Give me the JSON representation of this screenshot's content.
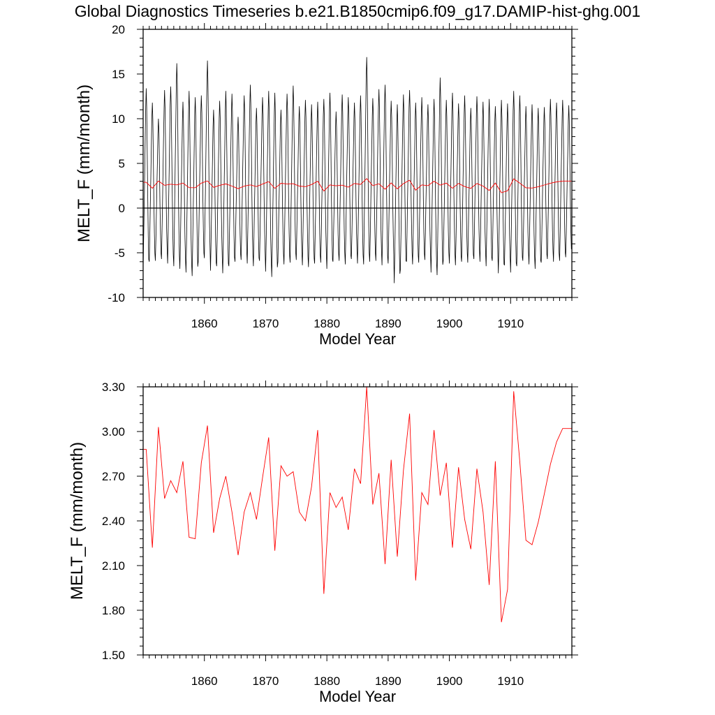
{
  "figure": {
    "title": "Global Diagnostics Timeseries b.e21.B1850cmip6.f09_g17.DAMIP-hist-ghg.001"
  },
  "chart_data": [
    {
      "type": "line",
      "panel": "top",
      "ylabel": "MELT_F (mm/month)",
      "xlabel": "Model Year",
      "xlim": [
        1850,
        1920
      ],
      "ylim": [
        -10,
        20
      ],
      "xticks": [
        1860,
        1870,
        1880,
        1890,
        1900,
        1910
      ],
      "yticks": [
        -10,
        -5,
        0,
        5,
        10,
        15,
        20
      ],
      "ytick_labels": [
        "-10",
        "-5",
        "0",
        "5",
        "10",
        "15",
        "20"
      ],
      "zero_line": true,
      "series": [
        {
          "kind": "monthly",
          "color": "#000000",
          "x_start": 1850,
          "step": 0.0833333,
          "pattern": [
            -6.5,
            -3.5,
            0.0,
            3.5,
            7.0,
            10.5,
            12.5,
            10.5,
            6.0,
            1.0,
            -3.0,
            -5.5
          ],
          "annual_peaks": [
            13.4,
            11.8,
            10.0,
            13.2,
            13.6,
            16.2,
            11.9,
            13.1,
            12.4,
            12.6,
            16.5,
            11.0,
            12.0,
            13.1,
            12.8,
            10.2,
            12.6,
            13.8,
            11.2,
            12.4,
            13.1,
            12.9,
            11.0,
            12.8,
            13.7,
            11.4,
            12.1,
            11.6,
            11.9,
            12.2,
            12.9,
            10.8,
            12.7,
            12.4,
            11.8,
            12.6,
            16.9,
            12.3,
            13.3,
            13.8,
            12.0,
            11.6,
            12.7,
            13.2,
            11.8,
            12.4,
            11.6,
            12.2,
            14.6,
            12.1,
            12.9,
            11.7,
            12.6,
            11.2,
            12.5,
            11.9,
            12.2,
            11.4,
            12.1,
            11.7,
            13.1,
            12.6,
            11.4,
            11.6,
            11.2,
            11.3,
            12.2,
            11.8,
            12.1,
            11.5
          ],
          "annual_troughs": [
            -6.8,
            -6.0,
            -5.9,
            -5.7,
            -6.2,
            -6.5,
            -6.8,
            -7.2,
            -7.6,
            -6.0,
            -5.6,
            -7.0,
            -6.5,
            -7.3,
            -6.5,
            -6.0,
            -5.8,
            -6.2,
            -6.5,
            -5.9,
            -7.1,
            -7.7,
            -6.0,
            -6.3,
            -6.1,
            -5.8,
            -6.4,
            -6.6,
            -6.2,
            -6.1,
            -6.8,
            -6.0,
            -5.9,
            -6.3,
            -5.7,
            -6.2,
            -6.3,
            -6.0,
            -5.9,
            -6.4,
            -6.2,
            -8.4,
            -6.9,
            -6.0,
            -6.3,
            -6.1,
            -5.8,
            -7.2,
            -7.5,
            -5.9,
            -6.2,
            -6.4,
            -6.0,
            -6.1,
            -5.7,
            -6.0,
            -6.5,
            -5.9,
            -7.3,
            -6.4,
            -7.2,
            -6.5,
            -5.9,
            -6.3,
            -6.8,
            -6.1,
            -5.7,
            -6.0,
            -5.9,
            -5.5
          ]
        },
        {
          "kind": "annual",
          "color": "#ff0000",
          "x": [
            1850.5,
            1851.5,
            1852.5,
            1853.5,
            1854.5,
            1855.5,
            1856.5,
            1857.5,
            1858.5,
            1859.5,
            1860.5,
            1861.5,
            1862.5,
            1863.5,
            1864.5,
            1865.5,
            1866.5,
            1867.5,
            1868.5,
            1869.5,
            1870.5,
            1871.5,
            1872.5,
            1873.5,
            1874.5,
            1875.5,
            1876.5,
            1877.5,
            1878.5,
            1879.5,
            1880.5,
            1881.5,
            1882.5,
            1883.5,
            1884.5,
            1885.5,
            1886.5,
            1887.5,
            1888.5,
            1889.5,
            1890.5,
            1891.5,
            1892.5,
            1893.5,
            1894.5,
            1895.5,
            1896.5,
            1897.5,
            1898.5,
            1899.5,
            1900.5,
            1901.5,
            1902.5,
            1903.5,
            1904.5,
            1905.5,
            1906.5,
            1907.5,
            1908.5,
            1909.5,
            1910.5,
            1911.5,
            1912.5,
            1913.5,
            1914.5,
            1915.5,
            1916.5,
            1917.5,
            1918.5,
            1919.5
          ],
          "y": [
            2.88,
            2.22,
            3.03,
            2.55,
            2.67,
            2.59,
            2.8,
            2.29,
            2.28,
            2.79,
            3.04,
            2.32,
            2.55,
            2.7,
            2.46,
            2.17,
            2.46,
            2.59,
            2.41,
            2.69,
            2.96,
            2.2,
            2.77,
            2.7,
            2.73,
            2.46,
            2.4,
            2.63,
            3.01,
            1.91,
            2.59,
            2.49,
            2.56,
            2.34,
            2.75,
            2.65,
            3.3,
            2.51,
            2.72,
            2.11,
            2.81,
            2.16,
            2.74,
            3.12,
            2.0,
            2.59,
            2.51,
            3.01,
            2.57,
            2.79,
            2.22,
            2.76,
            2.41,
            2.21,
            2.75,
            2.46,
            1.97,
            2.8,
            1.72,
            1.94,
            3.27,
            2.8,
            2.27,
            2.24,
            2.39,
            2.58,
            2.78,
            2.93,
            3.02,
            3.02
          ]
        }
      ]
    },
    {
      "type": "line",
      "panel": "bottom",
      "ylabel": "MELT_F (mm/month)",
      "xlabel": "Model Year",
      "xlim": [
        1850,
        1920
      ],
      "ylim": [
        1.5,
        3.3
      ],
      "xticks": [
        1860,
        1870,
        1880,
        1890,
        1900,
        1910
      ],
      "yticks": [
        1.5,
        1.8,
        2.1,
        2.4,
        2.7,
        3.0,
        3.3
      ],
      "ytick_labels": [
        "1.50",
        "1.80",
        "2.10",
        "2.40",
        "2.70",
        "3.00",
        "3.30"
      ],
      "zero_line": false,
      "series": [
        {
          "kind": "annual",
          "color": "#ff0000",
          "x": [
            1850.5,
            1851.5,
            1852.5,
            1853.5,
            1854.5,
            1855.5,
            1856.5,
            1857.5,
            1858.5,
            1859.5,
            1860.5,
            1861.5,
            1862.5,
            1863.5,
            1864.5,
            1865.5,
            1866.5,
            1867.5,
            1868.5,
            1869.5,
            1870.5,
            1871.5,
            1872.5,
            1873.5,
            1874.5,
            1875.5,
            1876.5,
            1877.5,
            1878.5,
            1879.5,
            1880.5,
            1881.5,
            1882.5,
            1883.5,
            1884.5,
            1885.5,
            1886.5,
            1887.5,
            1888.5,
            1889.5,
            1890.5,
            1891.5,
            1892.5,
            1893.5,
            1894.5,
            1895.5,
            1896.5,
            1897.5,
            1898.5,
            1899.5,
            1900.5,
            1901.5,
            1902.5,
            1903.5,
            1904.5,
            1905.5,
            1906.5,
            1907.5,
            1908.5,
            1909.5,
            1910.5,
            1911.5,
            1912.5,
            1913.5,
            1914.5,
            1915.5,
            1916.5,
            1917.5,
            1918.5,
            1919.5
          ],
          "y": [
            2.88,
            2.22,
            3.03,
            2.55,
            2.67,
            2.59,
            2.8,
            2.29,
            2.28,
            2.79,
            3.04,
            2.32,
            2.55,
            2.7,
            2.46,
            2.17,
            2.46,
            2.59,
            2.41,
            2.69,
            2.96,
            2.2,
            2.77,
            2.7,
            2.73,
            2.46,
            2.4,
            2.63,
            3.01,
            1.91,
            2.59,
            2.49,
            2.56,
            2.34,
            2.75,
            2.65,
            3.3,
            2.51,
            2.72,
            2.11,
            2.81,
            2.16,
            2.74,
            3.12,
            2.0,
            2.59,
            2.51,
            3.01,
            2.57,
            2.79,
            2.22,
            2.76,
            2.41,
            2.21,
            2.75,
            2.46,
            1.97,
            2.8,
            1.72,
            1.94,
            3.27,
            2.8,
            2.27,
            2.24,
            2.39,
            2.58,
            2.78,
            2.93,
            3.02,
            3.02
          ]
        }
      ]
    }
  ]
}
